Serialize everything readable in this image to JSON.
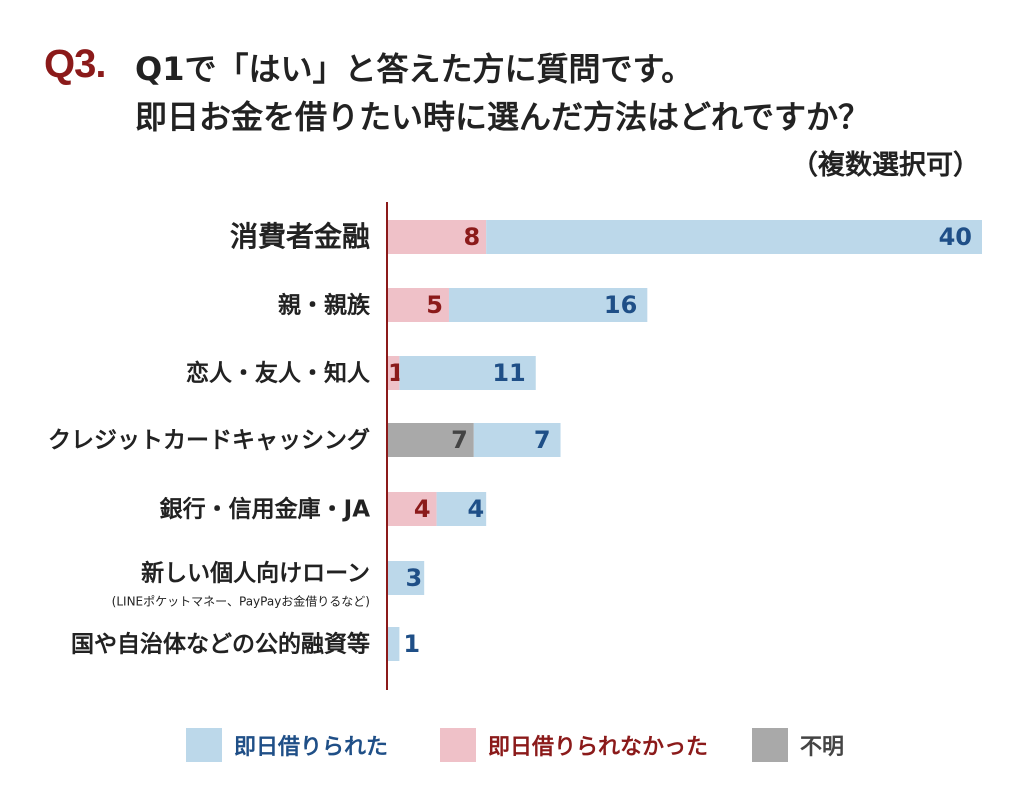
{
  "header": {
    "q_number": "Q3.",
    "title_line1": "Q1で「はい」と答えた方に質問です。",
    "title_line2": "即日お金を借りたい時に選んだ方法はどれですか？",
    "title_note": "（複数選択可）"
  },
  "colors": {
    "success": "#bcd8ea",
    "fail": "#efc1c8",
    "unknown": "#a9a9a9",
    "success_text": "#1f4f87",
    "fail_text": "#8b1a1a",
    "unknown_text": "#444444",
    "axis": "#8b1a1a"
  },
  "chart_data": {
    "type": "bar",
    "orientation": "horizontal",
    "stacked": true,
    "categories": [
      {
        "label": "消費者金融",
        "sublabel": ""
      },
      {
        "label": "親・親族",
        "sublabel": ""
      },
      {
        "label": "恋人・友人・知人",
        "sublabel": ""
      },
      {
        "label": "クレジットカードキャッシング",
        "sublabel": ""
      },
      {
        "label": "銀行・信用金庫・JA",
        "sublabel": ""
      },
      {
        "label": "新しい個人向けローン",
        "sublabel": "(LINEポケットマネー、PayPayお金借りるなど)"
      },
      {
        "label": "国や自治体などの公的融資等",
        "sublabel": ""
      }
    ],
    "series": [
      {
        "name": "即日借りられなかった",
        "key": "fail",
        "values": [
          8,
          5,
          1,
          0,
          4,
          0,
          0
        ]
      },
      {
        "name": "不明",
        "key": "unknown",
        "values": [
          0,
          0,
          0,
          7,
          0,
          0,
          0
        ]
      },
      {
        "name": "即日借りられた",
        "key": "success",
        "values": [
          40,
          16,
          11,
          7,
          4,
          3,
          1
        ]
      }
    ],
    "legend": {
      "position": "bottom",
      "items": [
        {
          "label": "即日借りられた",
          "key": "success"
        },
        {
          "label": "即日借りられなかった",
          "key": "fail"
        },
        {
          "label": "不明",
          "key": "unknown"
        }
      ]
    },
    "grid": false,
    "xlim": [
      0,
      48
    ]
  }
}
